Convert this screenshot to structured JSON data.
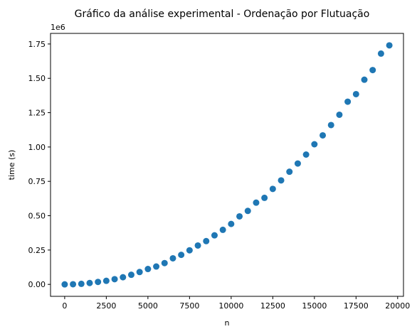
{
  "chart_data": {
    "type": "scatter",
    "title": "Gráfico da análise experimental - Ordenação por Flutuação",
    "xlabel": "n",
    "ylabel": "time (s)",
    "y_offset_label": "1e6",
    "xlim": [
      -850,
      20350
    ],
    "ylim": [
      -87000,
      1827000
    ],
    "x_ticks": [
      0,
      2500,
      5000,
      7500,
      10000,
      12500,
      15000,
      17500,
      20000
    ],
    "x_tick_labels": [
      "0",
      "2500",
      "5000",
      "7500",
      "10000",
      "12500",
      "15000",
      "17500",
      "20000"
    ],
    "y_ticks": [
      0,
      250000,
      500000,
      750000,
      1000000,
      1250000,
      1500000,
      1750000
    ],
    "y_tick_labels": [
      "0.00",
      "0.25",
      "0.50",
      "0.75",
      "1.00",
      "1.25",
      "1.50",
      "1.75"
    ],
    "grid": false,
    "marker_color": "#1f77b4",
    "x": [
      0,
      500,
      1000,
      1500,
      2000,
      2500,
      3000,
      3500,
      4000,
      4500,
      5000,
      5500,
      6000,
      6500,
      7000,
      7500,
      8000,
      8500,
      9000,
      9500,
      10000,
      10500,
      11000,
      11500,
      12000,
      12500,
      13000,
      13500,
      14000,
      14500,
      15000,
      15500,
      16000,
      16500,
      17000,
      17500,
      18000,
      18500,
      19000,
      19500
    ],
    "y": [
      0,
      1000,
      4000,
      10000,
      18000,
      26000,
      38000,
      52000,
      70000,
      90000,
      112000,
      130000,
      155000,
      190000,
      215000,
      248000,
      283000,
      315000,
      357000,
      397000,
      440000,
      495000,
      535000,
      595000,
      630000,
      695000,
      757000,
      820000,
      880000,
      945000,
      1020000,
      1085000,
      1160000,
      1235000,
      1330000,
      1385000,
      1490000,
      1560000,
      1680000,
      1740000
    ]
  }
}
